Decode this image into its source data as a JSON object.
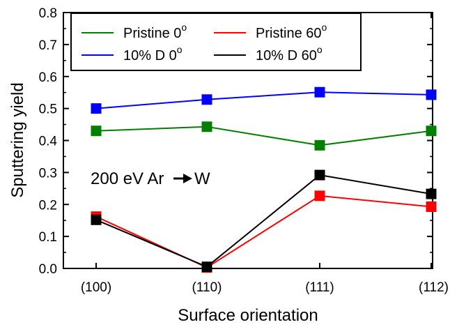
{
  "chart_data": {
    "type": "line",
    "title": "",
    "xlabel": "Surface orientation",
    "ylabel": "Sputtering yield",
    "categories": [
      "(100)",
      "(110)",
      "(111)",
      "(112)"
    ],
    "ylim": [
      0,
      0.8
    ],
    "yticks": [
      "0.0",
      "0.1",
      "0.2",
      "0.3",
      "0.4",
      "0.5",
      "0.6",
      "0.7",
      "0.8"
    ],
    "grid": false,
    "legend_position": "top-left",
    "series": [
      {
        "name": "Pristine 0",
        "name_sup": "o",
        "color": "#007f00",
        "values": [
          0.43,
          0.443,
          0.385,
          0.43
        ]
      },
      {
        "name": "Pristine 60",
        "name_sup": "o",
        "color": "#ff0000",
        "values": [
          0.162,
          0.003,
          0.227,
          0.193
        ]
      },
      {
        "name": "10% D 0",
        "name_sup": "o",
        "color": "#0000ff",
        "values": [
          0.5,
          0.528,
          0.551,
          0.543
        ]
      },
      {
        "name": "10% D 60",
        "name_sup": "o",
        "color": "#000000",
        "values": [
          0.152,
          0.005,
          0.292,
          0.233
        ]
      }
    ],
    "annotation": {
      "text_before": "200 eV Ar",
      "arrow_icon": "right-arrow-icon",
      "text_after": "W"
    }
  }
}
